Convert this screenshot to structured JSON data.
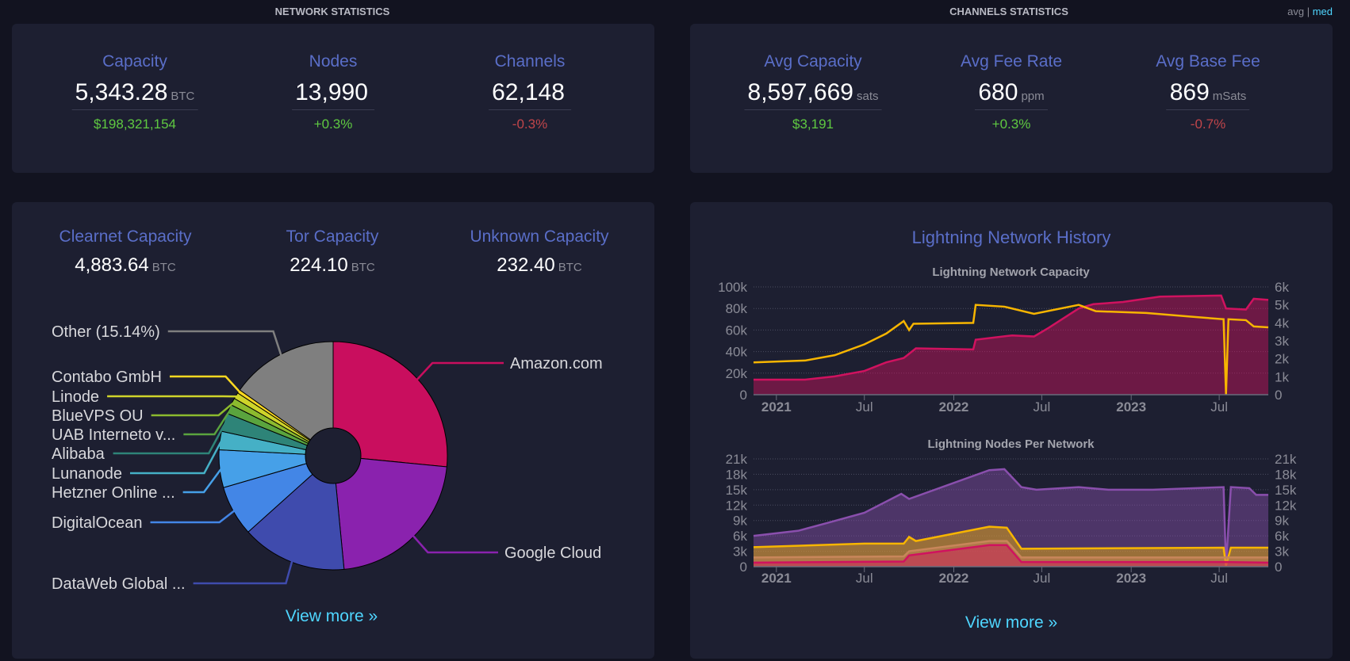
{
  "headers": {
    "network": "NETWORK STATISTICS",
    "channels": "CHANNELS STATISTICS",
    "toggle_avg": "avg",
    "toggle_sep": "|",
    "toggle_med": "med"
  },
  "network": [
    {
      "label": "Capacity",
      "value": "5,343.28",
      "unit": "BTC",
      "sub": "$198,321,154",
      "sub_color": "green"
    },
    {
      "label": "Nodes",
      "value": "13,990",
      "unit": "",
      "sub": "+0.3%",
      "sub_color": "green"
    },
    {
      "label": "Channels",
      "value": "62,148",
      "unit": "",
      "sub": "-0.3%",
      "sub_color": "red"
    }
  ],
  "channels": [
    {
      "label": "Avg Capacity",
      "value": "8,597,669",
      "unit": "sats",
      "sub": "$3,191",
      "sub_color": "green"
    },
    {
      "label": "Avg Fee Rate",
      "value": "680",
      "unit": "ppm",
      "sub": "+0.3%",
      "sub_color": "green"
    },
    {
      "label": "Avg Base Fee",
      "value": "869",
      "unit": "mSats",
      "sub": "-0.7%",
      "sub_color": "red"
    }
  ],
  "capacity": [
    {
      "label": "Clearnet Capacity",
      "value": "4,883.64",
      "unit": "BTC"
    },
    {
      "label": "Tor Capacity",
      "value": "224.10",
      "unit": "BTC"
    },
    {
      "label": "Unknown Capacity",
      "value": "232.40",
      "unit": "BTC"
    }
  ],
  "view_more": "View more »",
  "history_title": "Lightning Network History",
  "chart_data": [
    {
      "type": "pie",
      "donut": true,
      "slices": [
        {
          "label": "Amazon.com",
          "value": 26.4,
          "color": "#c90e5e"
        },
        {
          "label": "Google Cloud",
          "value": 21.8,
          "color": "#8a22ae"
        },
        {
          "label": "DataWeb Global ...",
          "value": 14.8,
          "color": "#3f4bad"
        },
        {
          "label": "DigitalOcean",
          "value": 7.1,
          "color": "#4386e6"
        },
        {
          "label": "Hetzner Online ...",
          "value": 5.3,
          "color": "#46a0e8"
        },
        {
          "label": "Lunanode",
          "value": 2.6,
          "color": "#45b0c6"
        },
        {
          "label": "Alibaba",
          "value": 2.6,
          "color": "#2e8478"
        },
        {
          "label": "UAB Interneto v...",
          "value": 1.3,
          "color": "#5aa43e"
        },
        {
          "label": "BlueVPS OU",
          "value": 1.0,
          "color": "#8cba2e"
        },
        {
          "label": "Linode",
          "value": 0.9,
          "color": "#cfd42a"
        },
        {
          "label": "Contabo GmbH",
          "value": 0.5,
          "color": "#fcd820"
        },
        {
          "label": "Other (15.14%)",
          "value": 15.14,
          "color": "#7f7f7f"
        }
      ]
    },
    {
      "type": "area",
      "title": "Lightning Network Capacity",
      "x_ticks": [
        "2021",
        "Jul",
        "2022",
        "Jul",
        "2023",
        "Jul"
      ],
      "x_tick_dates": [
        "2021-01-01",
        "2021-07-01",
        "2022-01-01",
        "2022-07-01",
        "2023-01-01",
        "2023-07-01"
      ],
      "xlim": [
        "2020-11-15",
        "2023-10-10"
      ],
      "y_left": {
        "ylim": [
          0,
          100000
        ],
        "ticks": [
          "0",
          "20k",
          "40k",
          "60k",
          "80k",
          "100k"
        ]
      },
      "y_right": {
        "ylim": [
          0,
          6000
        ],
        "ticks": [
          "0",
          "1k",
          "2k",
          "3k",
          "4k",
          "5k",
          "6k"
        ]
      },
      "grid": true,
      "series": [
        {
          "axis": "left",
          "color": "#d0125f",
          "fill": true,
          "points": [
            [
              "2020-11-15",
              14000
            ],
            [
              "2021-03-01",
              14000
            ],
            [
              "2021-05-01",
              17000
            ],
            [
              "2021-07-01",
              22000
            ],
            [
              "2021-08-15",
              30000
            ],
            [
              "2021-09-20",
              34000
            ],
            [
              "2021-10-15",
              43000
            ],
            [
              "2022-02-10",
              42000
            ],
            [
              "2022-02-15",
              51000
            ],
            [
              "2022-05-01",
              55000
            ],
            [
              "2022-06-15",
              54000
            ],
            [
              "2022-07-15",
              62000
            ],
            [
              "2022-09-15",
              80000
            ],
            [
              "2022-10-15",
              84000
            ],
            [
              "2022-12-15",
              86000
            ],
            [
              "2023-03-01",
              91000
            ],
            [
              "2023-07-05",
              92000
            ],
            [
              "2023-07-15",
              80000
            ],
            [
              "2023-08-25",
              79000
            ],
            [
              "2023-09-10",
              89000
            ],
            [
              "2023-10-10",
              88000
            ]
          ]
        },
        {
          "axis": "right",
          "color": "#f7b500",
          "fill": false,
          "points": [
            [
              "2020-11-15",
              1800
            ],
            [
              "2021-03-01",
              1900
            ],
            [
              "2021-05-01",
              2200
            ],
            [
              "2021-07-01",
              2800
            ],
            [
              "2021-08-15",
              3400
            ],
            [
              "2021-09-20",
              4100
            ],
            [
              "2021-10-01",
              3600
            ],
            [
              "2021-10-10",
              3950
            ],
            [
              "2022-02-10",
              4000
            ],
            [
              "2022-02-15",
              5000
            ],
            [
              "2022-04-15",
              4900
            ],
            [
              "2022-06-15",
              4500
            ],
            [
              "2022-09-15",
              5000
            ],
            [
              "2022-10-20",
              4650
            ],
            [
              "2023-02-01",
              4550
            ],
            [
              "2023-05-01",
              4350
            ],
            [
              "2023-07-10",
              4200
            ],
            [
              "2023-07-15",
              0
            ],
            [
              "2023-07-20",
              4200
            ],
            [
              "2023-08-25",
              4150
            ],
            [
              "2023-09-10",
              3800
            ],
            [
              "2023-10-10",
              3750
            ]
          ]
        }
      ]
    },
    {
      "type": "area",
      "title": "Lightning Nodes Per Network",
      "x_ticks": [
        "2021",
        "Jul",
        "2022",
        "Jul",
        "2023",
        "Jul"
      ],
      "x_tick_dates": [
        "2021-01-01",
        "2021-07-01",
        "2022-01-01",
        "2022-07-01",
        "2023-01-01",
        "2023-07-01"
      ],
      "xlim": [
        "2020-11-15",
        "2023-10-10"
      ],
      "y_left": {
        "ylim": [
          0,
          21000
        ],
        "ticks": [
          "0",
          "3k",
          "6k",
          "9k",
          "12k",
          "15k",
          "18k",
          "21k"
        ]
      },
      "y_right": {
        "ylim": [
          0,
          21000
        ],
        "ticks": [
          "0",
          "3k",
          "6k",
          "9k",
          "12k",
          "15k",
          "18k",
          "21k"
        ]
      },
      "grid": true,
      "series": [
        {
          "axis": "left",
          "color": "#8a4fad",
          "fill": true,
          "points": [
            [
              "2020-11-15",
              6000
            ],
            [
              "2021-02-15",
              7000
            ],
            [
              "2021-04-15",
              8500
            ],
            [
              "2021-07-01",
              10500
            ],
            [
              "2021-09-15",
              14200
            ],
            [
              "2021-10-01",
              13200
            ],
            [
              "2022-03-15",
              18800
            ],
            [
              "2022-04-15",
              19000
            ],
            [
              "2022-05-20",
              15500
            ],
            [
              "2022-06-20",
              15000
            ],
            [
              "2022-09-15",
              15500
            ],
            [
              "2022-11-15",
              15000
            ],
            [
              "2023-02-15",
              15000
            ],
            [
              "2023-07-10",
              15500
            ],
            [
              "2023-07-15",
              200
            ],
            [
              "2023-07-25",
              15500
            ],
            [
              "2023-09-01",
              15300
            ],
            [
              "2023-09-15",
              14000
            ],
            [
              "2023-10-10",
              14000
            ]
          ]
        },
        {
          "axis": "left",
          "color": "#f7b500",
          "fill": true,
          "points": [
            [
              "2020-11-15",
              3800
            ],
            [
              "2021-07-01",
              4500
            ],
            [
              "2021-09-20",
              4500
            ],
            [
              "2021-10-01",
              5800
            ],
            [
              "2021-10-15",
              5000
            ],
            [
              "2022-03-15",
              7800
            ],
            [
              "2022-04-20",
              7600
            ],
            [
              "2022-05-20",
              3500
            ],
            [
              "2023-07-10",
              3700
            ],
            [
              "2023-07-15",
              200
            ],
            [
              "2023-07-25",
              3700
            ],
            [
              "2023-10-10",
              3700
            ]
          ]
        },
        {
          "axis": "left",
          "color": "#c8865a",
          "fill": true,
          "points": [
            [
              "2020-11-15",
              1800
            ],
            [
              "2021-09-20",
              2000
            ],
            [
              "2021-10-01",
              3000
            ],
            [
              "2022-03-15",
              5000
            ],
            [
              "2022-04-20",
              5000
            ],
            [
              "2022-05-20",
              1800
            ],
            [
              "2023-07-10",
              1800
            ],
            [
              "2023-10-10",
              1800
            ]
          ]
        },
        {
          "axis": "left",
          "color": "#d0125f",
          "fill": true,
          "points": [
            [
              "2020-11-15",
              800
            ],
            [
              "2021-09-20",
              1000
            ],
            [
              "2021-10-01",
              2200
            ],
            [
              "2022-03-15",
              4200
            ],
            [
              "2022-04-20",
              4200
            ],
            [
              "2022-05-20",
              900
            ],
            [
              "2023-07-10",
              900
            ],
            [
              "2023-10-10",
              800
            ]
          ]
        }
      ]
    }
  ]
}
